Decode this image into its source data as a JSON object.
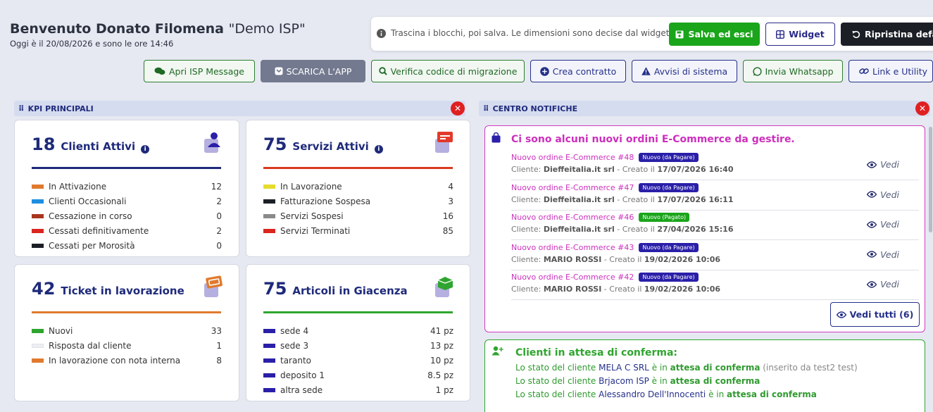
{
  "header": {
    "welcome": "Benvenuto Donato Filomena",
    "org": "\"Demo ISP\"",
    "datetime": "Oggi è il 20/08/2026 e sono le ore 14:46"
  },
  "toolbar": {
    "info": "Trascina i blocchi, poi salva. Le dimensioni sono decise dal widget.",
    "save": "Salva ed esci",
    "widget": "Widget",
    "reset": "Ripristina default"
  },
  "actions": {
    "isp_message": "Apri ISP Message",
    "app": "SCARICA L'APP",
    "migration": "Verifica codice di migrazione",
    "contract": "Crea contratto",
    "alerts": "Avvisi di sistema",
    "whatsapp": "Invia Whatsapp",
    "links": "Link e Utility"
  },
  "sections": {
    "kpi": "KPI PRINCIPALI",
    "notifications": "CENTRO NOTIFICHE"
  },
  "kpi": {
    "clients": {
      "count": "18",
      "label": "Clienti Attivi",
      "accent": "#1e2a7a",
      "rows": [
        {
          "label": "In Attivazione",
          "value": "12",
          "color": "#e07a2e"
        },
        {
          "label": "Clienti Occasionali",
          "value": "2",
          "color": "#1e8ee0"
        },
        {
          "label": "Cessazione in corso",
          "value": "0",
          "color": "#a8351f"
        },
        {
          "label": "Cessati definitivamente",
          "value": "2",
          "color": "#d9261f"
        },
        {
          "label": "Cessati per Morosità",
          "value": "0",
          "color": "#1c1f26"
        }
      ]
    },
    "services": {
      "count": "75",
      "label": "Servizi Attivi",
      "accent": "#d93a20",
      "rows": [
        {
          "label": "In Lavorazione",
          "value": "4",
          "color": "#e6dc2e"
        },
        {
          "label": "Fatturazione Sospesa",
          "value": "3",
          "color": "#1c1f26"
        },
        {
          "label": "Servizi Sospesi",
          "value": "16",
          "color": "#8a8a8a"
        },
        {
          "label": "Servizi Terminati",
          "value": "85",
          "color": "#d9261f"
        }
      ]
    },
    "tickets": {
      "count": "42",
      "label": "Ticket in lavorazione",
      "accent": "#e07a2e",
      "rows": [
        {
          "label": "Nuovi",
          "value": "33",
          "color": "#2fa52f"
        },
        {
          "label": "Risposta dal cliente",
          "value": "1",
          "color": "#eceef2"
        },
        {
          "label": "In lavorazione con nota interna",
          "value": "8",
          "color": "#e07a2e"
        }
      ]
    },
    "stock": {
      "count": "75",
      "label": "Articoli in Giacenza",
      "accent": "#2fa52f",
      "rows": [
        {
          "label": "sede 4",
          "value": "41 pz",
          "color": "#2a1fa8"
        },
        {
          "label": "sede 3",
          "value": "13 pz",
          "color": "#2a1fa8"
        },
        {
          "label": "taranto",
          "value": "10 pz",
          "color": "#2a1fa8"
        },
        {
          "label": "deposito 1",
          "value": "8.5 pz",
          "color": "#2a1fa8"
        },
        {
          "label": "altra sede",
          "value": "1 pz",
          "color": "#2a1fa8"
        }
      ]
    }
  },
  "orders": {
    "title": "Ci sono alcuni nuovi ordini E-Commerce da gestire.",
    "vedi": "Vedi",
    "vedi_tutti": "Vedi tutti (6)",
    "items": [
      {
        "name": "Nuovo ordine E-Commerce ",
        "num": "#48",
        "badge": "Nuovo (da Pagare)",
        "badge_color": "#2a1fa8",
        "client_prefix": "Cliente: ",
        "client": "Dieffeitalia.it srl",
        "created": " - Creato il ",
        "date": "17/07/2026 16:40"
      },
      {
        "name": "Nuovo ordine E-Commerce ",
        "num": "#47",
        "badge": "Nuovo (da Pagare)",
        "badge_color": "#2a1fa8",
        "client_prefix": "Cliente: ",
        "client": "Dieffeitalia.it srl",
        "created": " - Creato il ",
        "date": "17/07/2026 16:11"
      },
      {
        "name": "Nuovo ordine E-Commerce ",
        "num": "#46",
        "badge": "Nuovo (Pagato)",
        "badge_color": "#1aa51a",
        "client_prefix": "Cliente: ",
        "client": "Dieffeitalia.it srl",
        "created": " - Creato il ",
        "date": "27/04/2026 15:16"
      },
      {
        "name": "Nuovo ordine E-Commerce ",
        "num": "#43",
        "badge": "Nuovo (da Pagare)",
        "badge_color": "#2a1fa8",
        "client_prefix": "Cliente: ",
        "client": "MARIO ROSSI",
        "created": " - Creato il ",
        "date": "19/02/2026 10:06"
      },
      {
        "name": "Nuovo ordine E-Commerce ",
        "num": "#42",
        "badge": "Nuovo (da Pagare)",
        "badge_color": "#2a1fa8",
        "client_prefix": "Cliente: ",
        "client": "MARIO ROSSI",
        "created": " - Creato il ",
        "date": "19/02/2026 10:06"
      }
    ]
  },
  "pending_clients": {
    "title": "Clienti in attesa di conferma:",
    "lines": [
      {
        "prefix": "Lo stato del cliente ",
        "name": "MELA C SRL",
        "mid": " è in ",
        "status": "attesa di conferma",
        "hint": " (inserito da test2 test)"
      },
      {
        "prefix": "Lo stato del cliente ",
        "name": "Brjacom ISP",
        "mid": " è in ",
        "status": "attesa di conferma",
        "hint": ""
      },
      {
        "prefix": "Lo stato del cliente ",
        "name": "Alessandro Dell'Innocenti",
        "mid": " è in ",
        "status": "attesa di conferma",
        "hint": ""
      }
    ]
  }
}
